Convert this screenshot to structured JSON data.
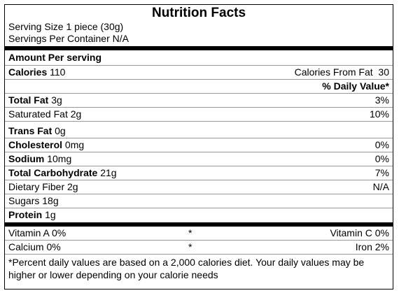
{
  "title": "Nutrition Facts",
  "serving_size": "Serving Size 1 piece (30g)",
  "servings_per_container": "Servings Per Container N/A",
  "amount_per_serving": "Amount Per serving",
  "calories": {
    "label": "Calories",
    "value": "110",
    "from_fat_label": "Calories From Fat",
    "from_fat_value": "30"
  },
  "daily_value_header": "% Daily Value*",
  "nutrients": {
    "total_fat": {
      "label": "Total Fat",
      "amount": "3g",
      "dv": "3%"
    },
    "saturated_fat": {
      "label": "Saturated Fat 2g",
      "dv": "10%"
    },
    "trans_fat": {
      "label": "Trans Fat",
      "amount": "0g"
    },
    "cholesterol": {
      "label": "Cholesterol",
      "amount": "0mg",
      "dv": "0%"
    },
    "sodium": {
      "label": "Sodium",
      "amount": "10mg",
      "dv": "0%"
    },
    "total_carbohydrate": {
      "label": "Total Carbohydrate",
      "amount": "21g",
      "dv": "7%"
    },
    "dietary_fiber": {
      "label": "Dietary Fiber 2g",
      "dv": "N/A"
    },
    "sugars": {
      "label": "Sugars 18g"
    },
    "protein": {
      "label": "Protein",
      "amount": "1g"
    }
  },
  "vitamins": [
    {
      "left": "Vitamin A 0%",
      "star": "*",
      "right": "Vitamin C 0%"
    },
    {
      "left": "Calcium 0%",
      "star": "*",
      "right": "Iron 2%"
    }
  ],
  "footnote": "*Percent daily values are based on a 2,000 calories diet. Your daily values may be higher or lower depending on your calorie needs"
}
